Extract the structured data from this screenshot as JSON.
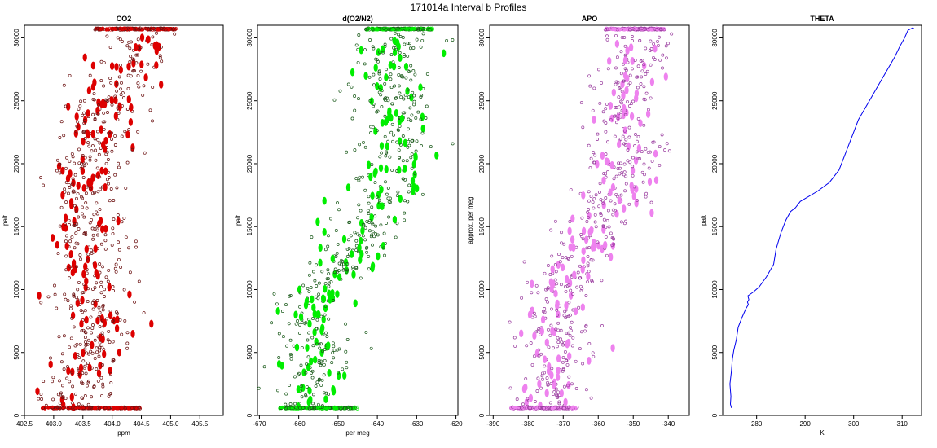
{
  "figure": {
    "title": "171014a   Interval b Profiles"
  },
  "chart_data": [
    {
      "type": "scatter",
      "title": "CO2",
      "xlabel": "ppm",
      "ylabel": "palt",
      "xlim": [
        402.5,
        405.9
      ],
      "ylim": [
        0,
        31000
      ],
      "xticks": [
        402.5,
        403.0,
        403.5,
        404.0,
        404.5,
        405.0,
        405.5
      ],
      "yticks": [
        0,
        5000,
        10000,
        15000,
        20000,
        25000,
        30000
      ],
      "colors": {
        "points": "#dd0000",
        "outline": "#6b1010"
      },
      "profile": [
        [
          403.2,
          600
        ],
        [
          403.3,
          1500
        ],
        [
          403.5,
          3000
        ],
        [
          403.6,
          4500
        ],
        [
          403.7,
          6000
        ],
        [
          403.8,
          7500
        ],
        [
          403.6,
          9000
        ],
        [
          403.7,
          10500
        ],
        [
          403.5,
          12000
        ],
        [
          403.6,
          13500
        ],
        [
          403.5,
          15000
        ],
        [
          403.4,
          16500
        ],
        [
          403.6,
          18000
        ],
        [
          403.5,
          19500
        ],
        [
          403.7,
          21000
        ],
        [
          403.8,
          22500
        ],
        [
          403.9,
          24000
        ],
        [
          404.0,
          25500
        ],
        [
          404.2,
          27000
        ],
        [
          404.4,
          28500
        ],
        [
          404.5,
          29500
        ]
      ],
      "spread": 0.3,
      "count": 650,
      "top_band": {
        "y": 30700,
        "x_range": [
          403.7,
          405.1
        ]
      },
      "bottom_band": {
        "y": 600,
        "x_range": [
          402.8,
          404.5
        ]
      }
    },
    {
      "type": "scatter",
      "title": "d(O2/N2)",
      "xlabel": "per meg",
      "ylabel": "palt",
      "xlim": [
        -670.5,
        -619.5
      ],
      "ylim": [
        0,
        31000
      ],
      "xticks": [
        -670,
        -660,
        -650,
        -640,
        -630,
        -620
      ],
      "yticks": [
        0,
        5000,
        10000,
        15000,
        20000,
        25000,
        30000
      ],
      "colors": {
        "points": "#00ee00",
        "outline": "#1a5a1a"
      },
      "profile": [
        [
          -658,
          600
        ],
        [
          -657,
          2000
        ],
        [
          -656,
          3500
        ],
        [
          -654,
          5000
        ],
        [
          -655,
          6500
        ],
        [
          -656,
          8000
        ],
        [
          -657,
          9500
        ],
        [
          -650,
          11000
        ],
        [
          -647,
          12500
        ],
        [
          -644,
          14000
        ],
        [
          -643,
          15500
        ],
        [
          -640,
          17000
        ],
        [
          -637,
          18500
        ],
        [
          -636,
          20000
        ],
        [
          -634,
          21500
        ],
        [
          -635,
          23000
        ],
        [
          -636,
          24500
        ],
        [
          -636,
          26000
        ],
        [
          -636,
          27500
        ],
        [
          -635,
          29000
        ],
        [
          -634,
          30000
        ]
      ],
      "spread": 4.5,
      "count": 600,
      "top_band": {
        "y": 30700,
        "x_range": [
          -643,
          -626
        ]
      },
      "bottom_band": {
        "y": 600,
        "x_range": [
          -665,
          -645
        ]
      }
    },
    {
      "type": "scatter",
      "title": "APO",
      "xlabel": "",
      "ylabel": "approx. per meg",
      "xlim": [
        -391,
        -334
      ],
      "ylim": [
        0,
        31000
      ],
      "xticks": [
        -390,
        -380,
        -370,
        -360,
        -350,
        -340
      ],
      "yticks": [
        0,
        5000,
        10000,
        15000,
        20000,
        25000,
        30000
      ],
      "colors": {
        "points": "#ee82ee",
        "outline": "#9b3fa0"
      },
      "profile": [
        [
          -376,
          600
        ],
        [
          -373,
          2000
        ],
        [
          -372,
          3500
        ],
        [
          -371,
          5000
        ],
        [
          -373,
          6500
        ],
        [
          -373,
          8000
        ],
        [
          -373,
          9500
        ],
        [
          -366,
          11000
        ],
        [
          -365,
          12500
        ],
        [
          -362,
          14000
        ],
        [
          -360,
          15500
        ],
        [
          -357,
          17000
        ],
        [
          -354,
          18500
        ],
        [
          -353,
          20000
        ],
        [
          -351,
          21500
        ],
        [
          -352,
          23000
        ],
        [
          -354,
          24500
        ],
        [
          -352,
          26000
        ],
        [
          -350,
          27500
        ],
        [
          -349,
          29000
        ],
        [
          -349,
          30000
        ]
      ],
      "spread": 4.8,
      "count": 600,
      "top_band": {
        "y": 30700,
        "x_range": [
          -358,
          -341
        ]
      },
      "bottom_band": {
        "y": 600,
        "x_range": [
          -385,
          -366
        ]
      }
    },
    {
      "type": "line",
      "title": "THETA",
      "xlabel": "K",
      "ylabel": "palt",
      "xlim": [
        273,
        314
      ],
      "ylim": [
        0,
        31000
      ],
      "xticks": [
        280,
        290,
        300,
        310
      ],
      "yticks": [
        0,
        5000,
        10000,
        15000,
        20000,
        25000,
        30000
      ],
      "colors": {
        "line": "#0000ee"
      },
      "series": [
        {
          "x": [
            274.8,
            274.6,
            274.7,
            274.5,
            274.8,
            275.0,
            275.3,
            275.8,
            276.2,
            277.0,
            277.8,
            278.3,
            278.1,
            278.4,
            278.2,
            279.3,
            280.5,
            282.0,
            283.5,
            284.0,
            285.0,
            286.0,
            287.0,
            288.0,
            289.0,
            292.5,
            295.0,
            297.0,
            298.0,
            299.0,
            300.0,
            301.0,
            302.5,
            304.0,
            305.5,
            307.0,
            308.5,
            309.5,
            310.5,
            311.2,
            312.2,
            312.5
          ],
          "y": [
            600,
            900,
            1500,
            2500,
            3500,
            4500,
            5200,
            6000,
            7000,
            7800,
            8500,
            8800,
            9000,
            9200,
            9500,
            9800,
            10200,
            11000,
            12000,
            13200,
            14500,
            15500,
            16200,
            16500,
            17000,
            17800,
            18500,
            19500,
            20500,
            21500,
            22500,
            23500,
            24500,
            25500,
            26500,
            27500,
            28500,
            29300,
            30000,
            30600,
            30800,
            30700
          ]
        }
      ]
    }
  ]
}
